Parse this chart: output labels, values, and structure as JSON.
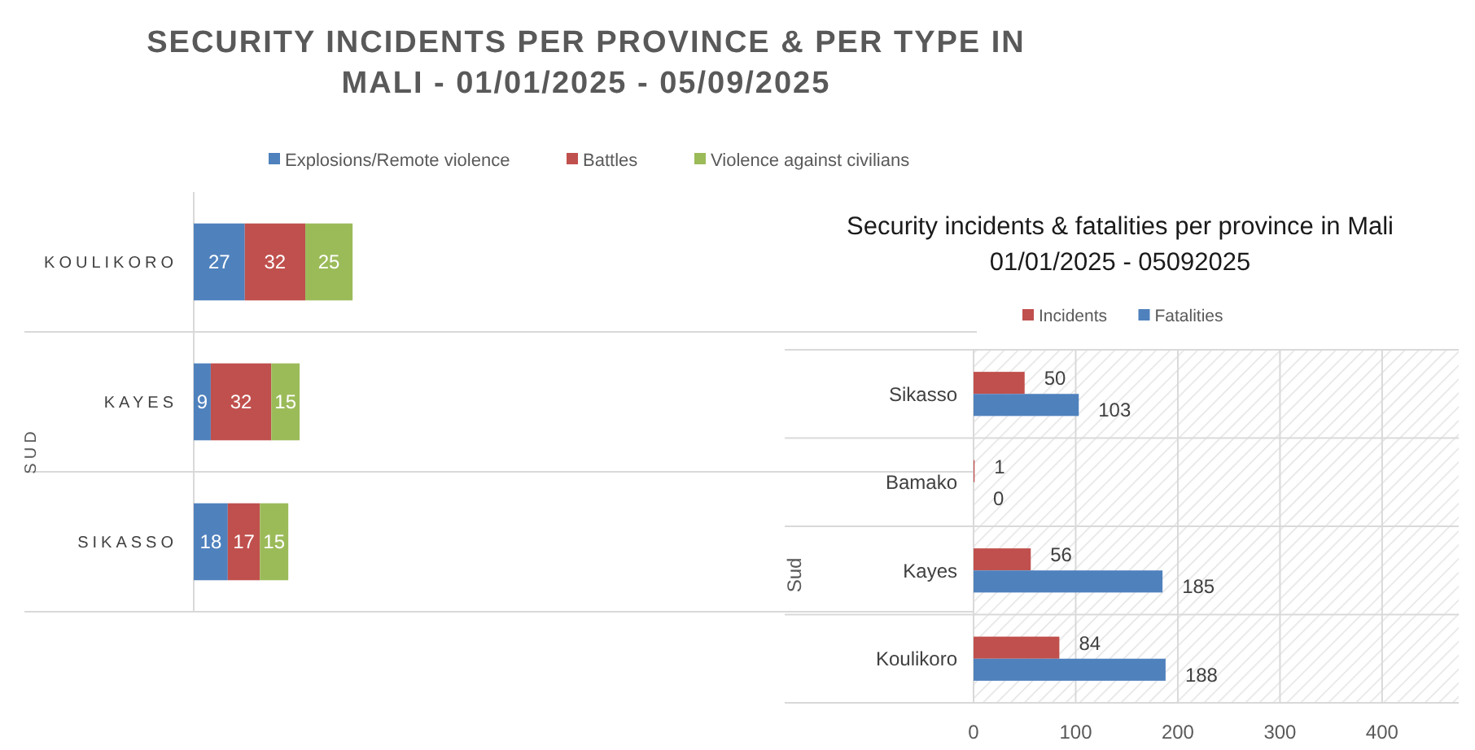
{
  "chart_data": [
    {
      "type": "bar",
      "orientation": "horizontal",
      "stacked": true,
      "title": "SECURITY INCIDENTS PER PROVINCE & PER TYPE IN MALI - 01/01/2025 - 05/09/2025",
      "ylabel": "SUD",
      "categories": [
        "KOULIKORO",
        "KAYES",
        "SIKASSO"
      ],
      "series": [
        {
          "name": "Explosions/Remote violence",
          "color": "#4f81bd",
          "values": [
            27,
            9,
            18
          ]
        },
        {
          "name": "Battles",
          "color": "#c0504d",
          "values": [
            32,
            32,
            17
          ]
        },
        {
          "name": "Violence against civilians",
          "color": "#9bbb59",
          "values": [
            25,
            15,
            15
          ]
        }
      ],
      "data_labels": true,
      "legend": "top"
    },
    {
      "type": "bar",
      "orientation": "horizontal",
      "title": "Security incidents & fatalities per province in Mali 01/01/2025 - 05092025",
      "ylabel": "Sud",
      "categories": [
        "Sikasso",
        "Bamako",
        "Kayes",
        "Koulikoro"
      ],
      "series": [
        {
          "name": "Incidents",
          "color": "#c0504d",
          "values": [
            50,
            1,
            56,
            84
          ]
        },
        {
          "name": "Fatalities",
          "color": "#4f81bd",
          "values": [
            103,
            0,
            185,
            188
          ]
        }
      ],
      "xlim": [
        0,
        475
      ],
      "xticks": [
        0,
        100,
        200,
        300,
        400
      ],
      "grid": "x",
      "data_labels": true,
      "legend": "top"
    }
  ]
}
